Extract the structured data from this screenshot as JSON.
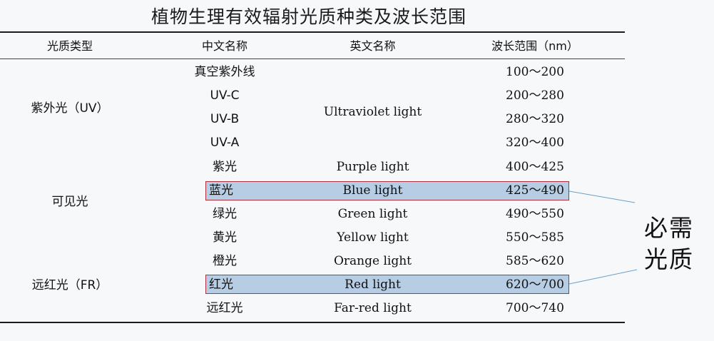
{
  "title": "植物生理有效辐射光质种类及波长范围",
  "headers": {
    "type": "光质类型",
    "cn_name": "中文名称",
    "en_name": "英文名称",
    "range": "波长范围（nm）"
  },
  "groups": {
    "uv": "紫外光（UV）",
    "visible": "可见光",
    "fr": "远红光（FR）"
  },
  "rows": [
    {
      "cn": "真空紫外线",
      "en": "",
      "range": "100～200"
    },
    {
      "cn": "UV-C",
      "en": "",
      "range": "200～280"
    },
    {
      "cn": "UV-B",
      "en": "",
      "range": "280～320"
    },
    {
      "cn": "UV-A",
      "en": "",
      "range": "320～400"
    },
    {
      "cn": "紫光",
      "en": "Purple light",
      "range": "400～425"
    },
    {
      "cn": "蓝光",
      "en": "Blue light",
      "range": "425～490"
    },
    {
      "cn": "绿光",
      "en": "Green light",
      "range": "490～550"
    },
    {
      "cn": "黄光",
      "en": "Yellow light",
      "range": "550～585"
    },
    {
      "cn": "橙光",
      "en": "Orange light",
      "range": "585～620"
    },
    {
      "cn": "红光",
      "en": "Red light",
      "range": "620～700"
    },
    {
      "cn": "远红光",
      "en": "Far-red light",
      "range": "700～740"
    }
  ],
  "uv_en_name": "Ultraviolet light",
  "callout": {
    "line1": "必需",
    "line2": "光质"
  },
  "colors": {
    "highlight_fill": "#b7cde3",
    "highlight_border": "#b03040",
    "leader_line": "#6a9fc8"
  }
}
